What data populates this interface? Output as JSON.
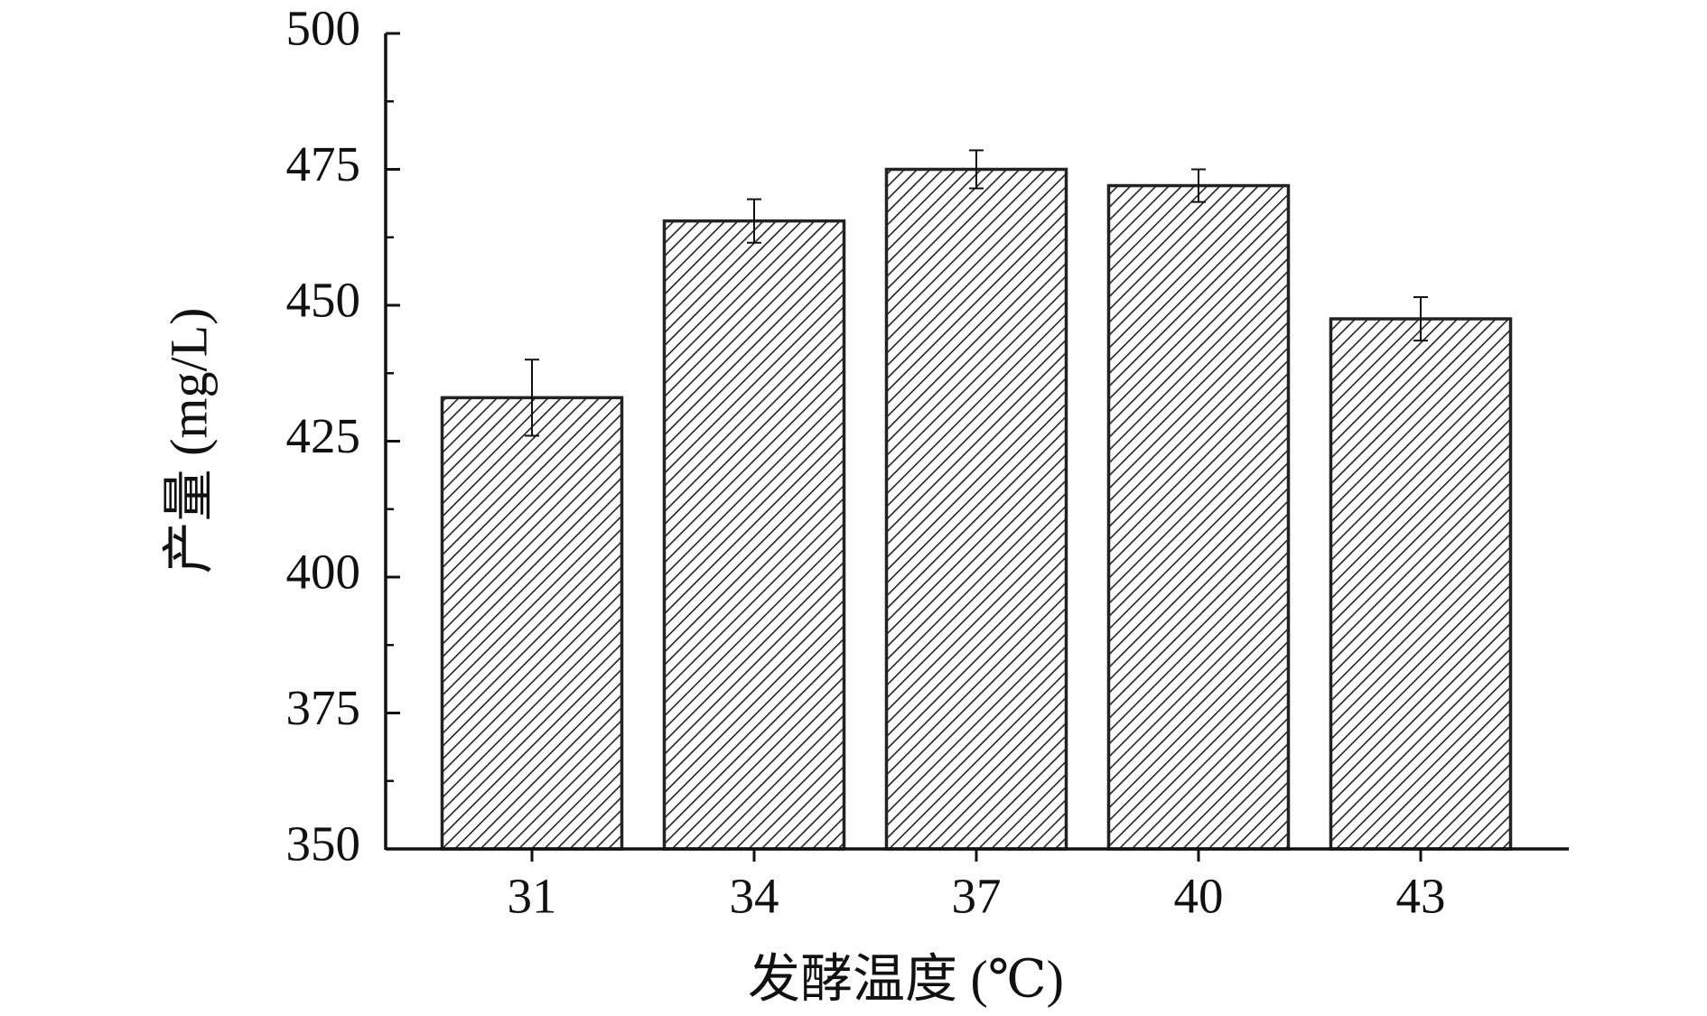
{
  "chart_data": {
    "type": "bar",
    "xlabel": "发酵温度 (℃)",
    "ylabel": "产量 (mg/L)",
    "categories": [
      "31",
      "34",
      "37",
      "40",
      "43"
    ],
    "values": [
      433,
      465.5,
      475,
      472,
      447.5
    ],
    "errors": [
      7,
      4,
      3.5,
      3,
      4
    ],
    "color": "#222222",
    "ylim": [
      350,
      500
    ],
    "yticks": [
      350,
      375,
      400,
      425,
      450,
      475,
      500
    ],
    "grid": false
  }
}
